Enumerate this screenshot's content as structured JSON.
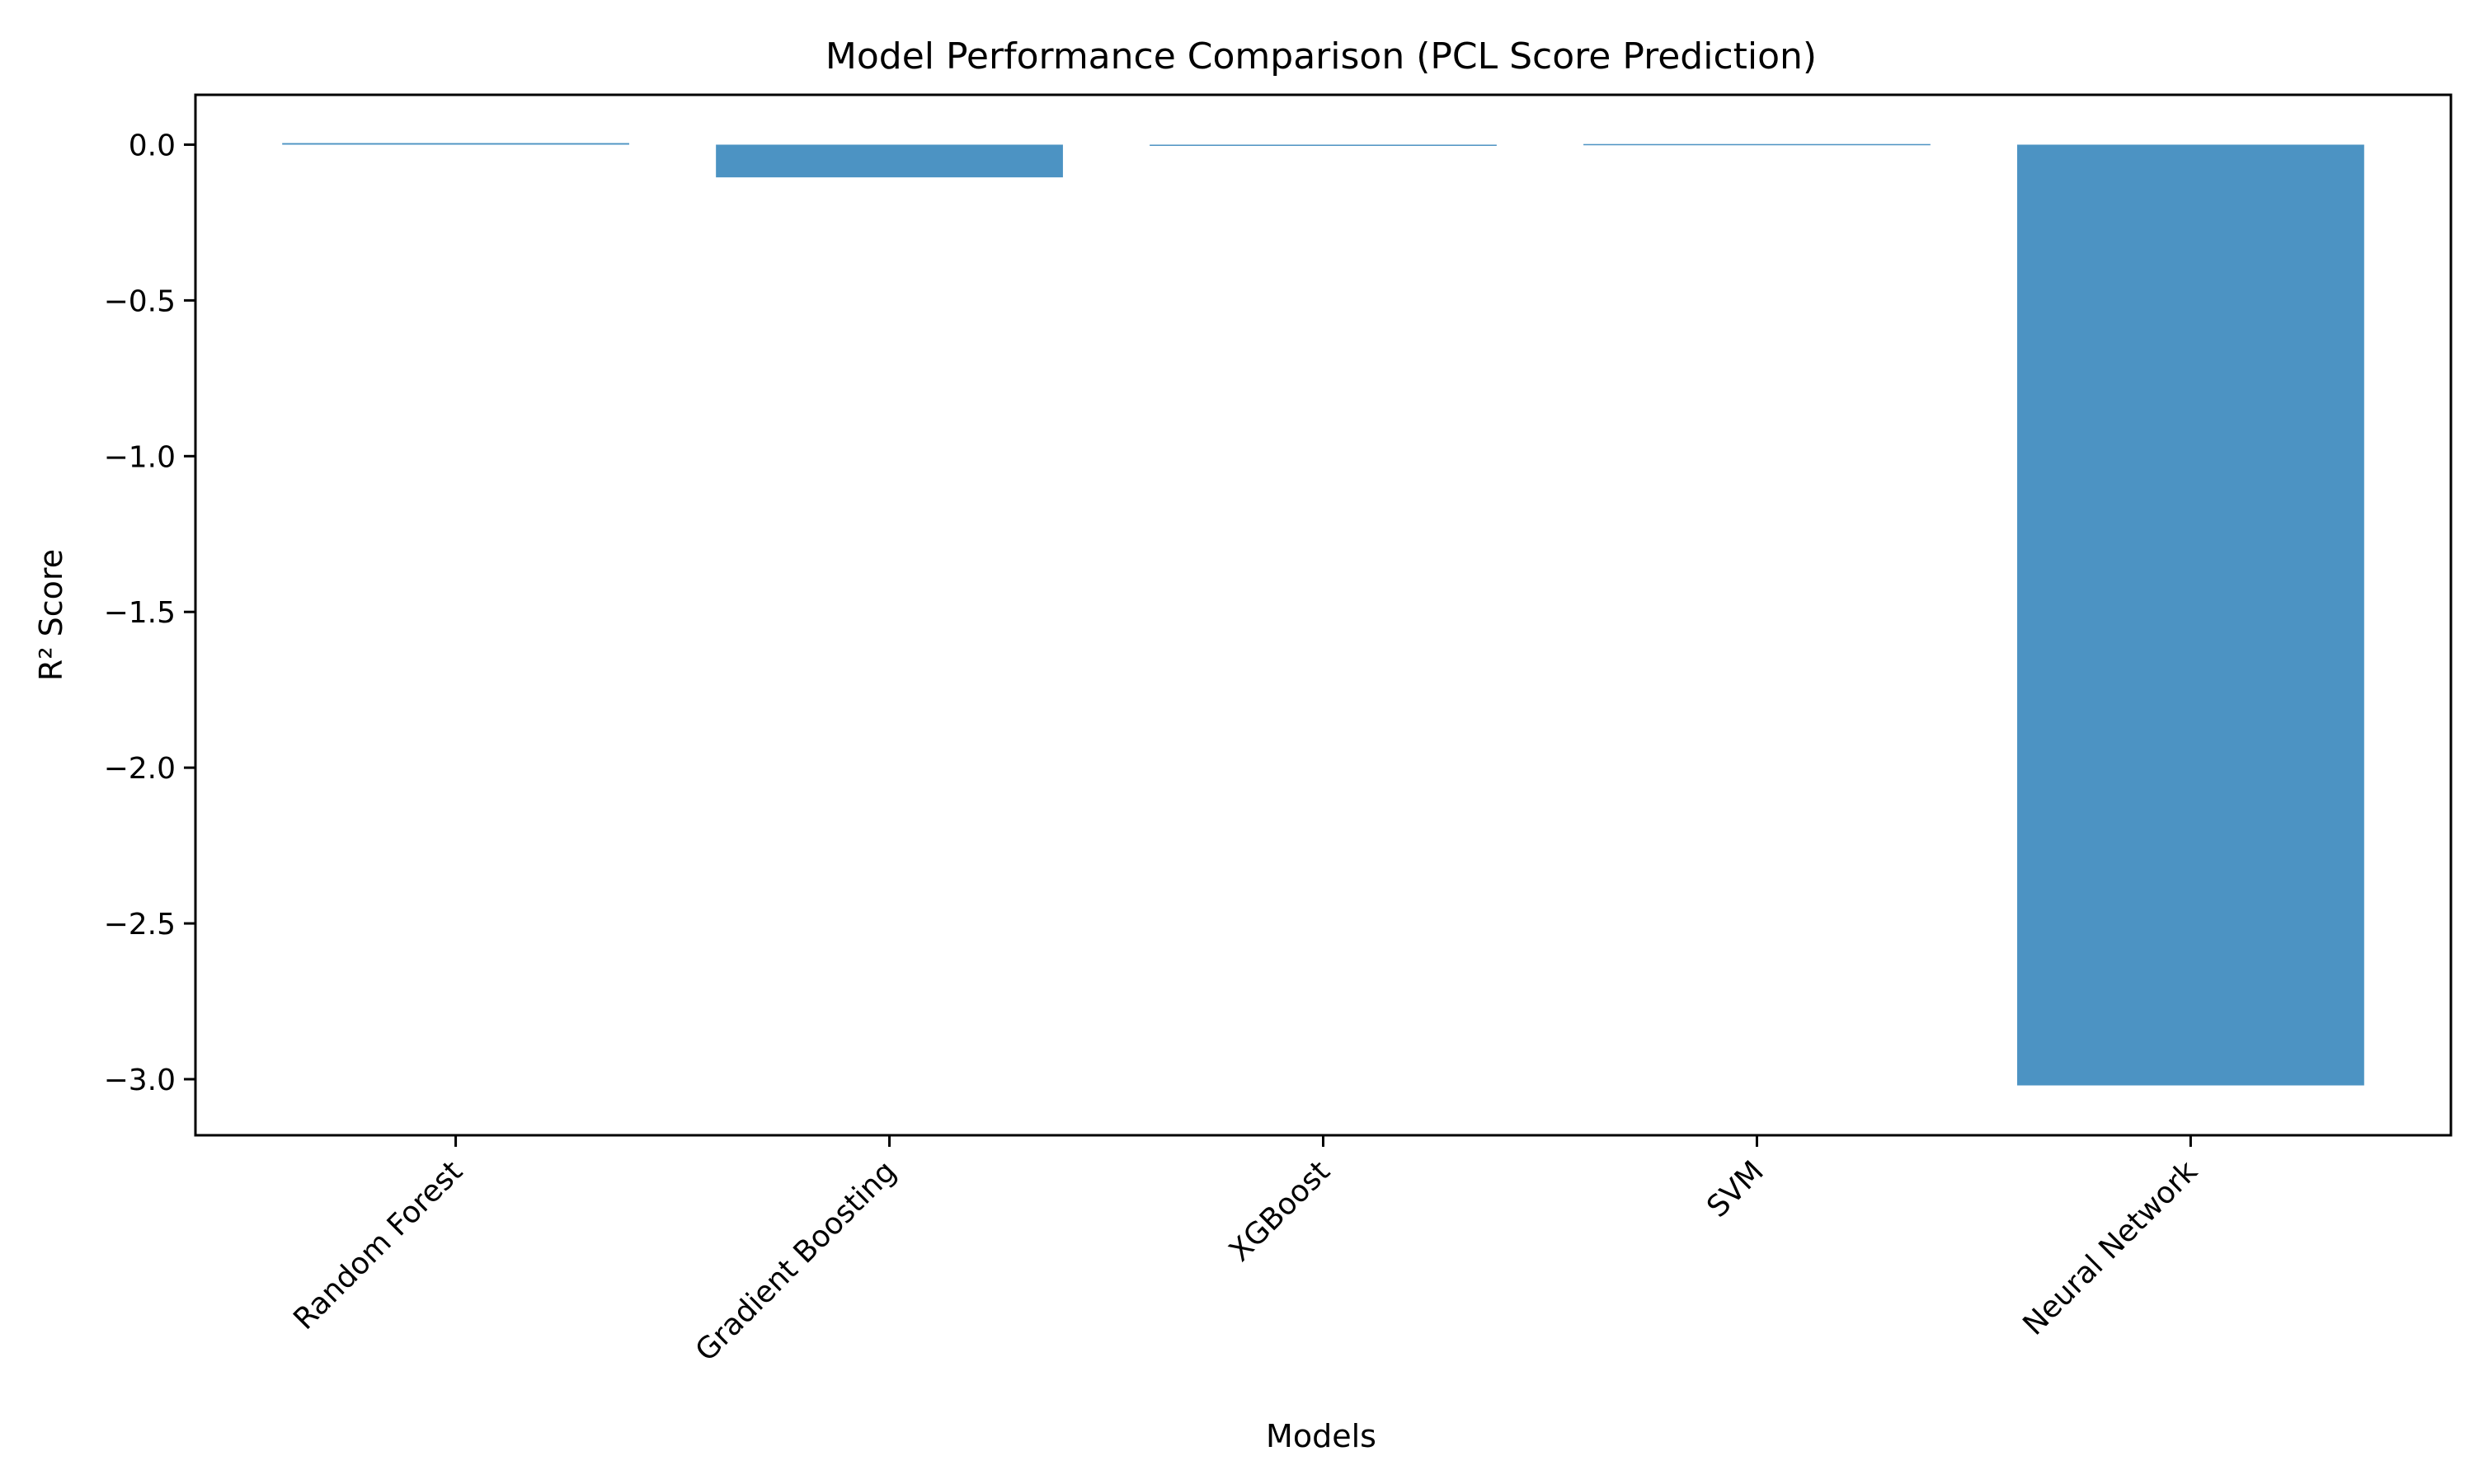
{
  "chart_data": {
    "type": "bar",
    "title": "Model Performance Comparison (PCL Score Prediction)",
    "xlabel": "Models",
    "ylabel": "R² Score",
    "categories": [
      "Random Forest",
      "Gradient Boosting",
      "XGBoost",
      "SVM",
      "Neural Network"
    ],
    "values": [
      0.005,
      -0.105,
      -0.004,
      0.002,
      -3.02
    ],
    "ylim": [
      -3.18,
      0.16
    ],
    "yticks": [
      0.0,
      -0.5,
      -1.0,
      -1.5,
      -2.0,
      -2.5,
      -3.0
    ],
    "ytick_labels": [
      "0.0",
      "−0.5",
      "−1.0",
      "−1.5",
      "−2.0",
      "−2.5",
      "−3.0"
    ],
    "grid": false,
    "bar_color": "#4c93c3",
    "x_tick_rotation_deg": 45
  }
}
